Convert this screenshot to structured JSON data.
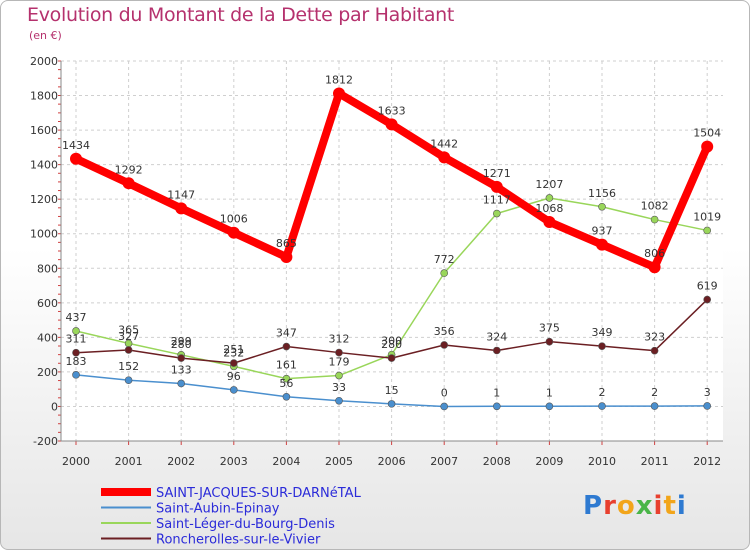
{
  "title": "Evolution du Montant de la Dette par Habitant",
  "subtitle": "(en €)",
  "logo_text": "Proxiti",
  "chart_data": {
    "type": "line",
    "x": [
      "2000",
      "2001",
      "2002",
      "2003",
      "2004",
      "2005",
      "2006",
      "2007",
      "2008",
      "2009",
      "2010",
      "2011",
      "2012"
    ],
    "ylim": [
      -200,
      2000
    ],
    "yticks": [
      -200,
      0,
      200,
      400,
      600,
      800,
      1000,
      1200,
      1400,
      1600,
      1800,
      2000
    ],
    "legend_position": "bottom-left",
    "series": [
      {
        "name": "SAINT-JACQUES-SUR-DARNéTAL",
        "color": "#ff0000",
        "values": [
          1434,
          1292,
          1147,
          1006,
          865,
          1812,
          1633,
          1442,
          1271,
          1068,
          937,
          806,
          1504
        ]
      },
      {
        "name": "Saint-Aubin-Epinay",
        "color": "#4a8fce",
        "values": [
          183,
          152,
          133,
          96,
          56,
          33,
          15,
          0,
          1,
          1,
          2,
          2,
          3
        ]
      },
      {
        "name": "Saint-Léger-du-Bourg-Denis",
        "color": "#99d65a",
        "values": [
          437,
          365,
          299,
          232,
          161,
          179,
          300,
          772,
          1117,
          1207,
          1156,
          1082,
          1019
        ]
      },
      {
        "name": "Roncherolles-sur-le-Vivier",
        "color": "#6b1f23",
        "values": [
          311,
          327,
          280,
          251,
          347,
          312,
          280,
          356,
          324,
          375,
          349,
          323,
          619
        ]
      }
    ]
  }
}
